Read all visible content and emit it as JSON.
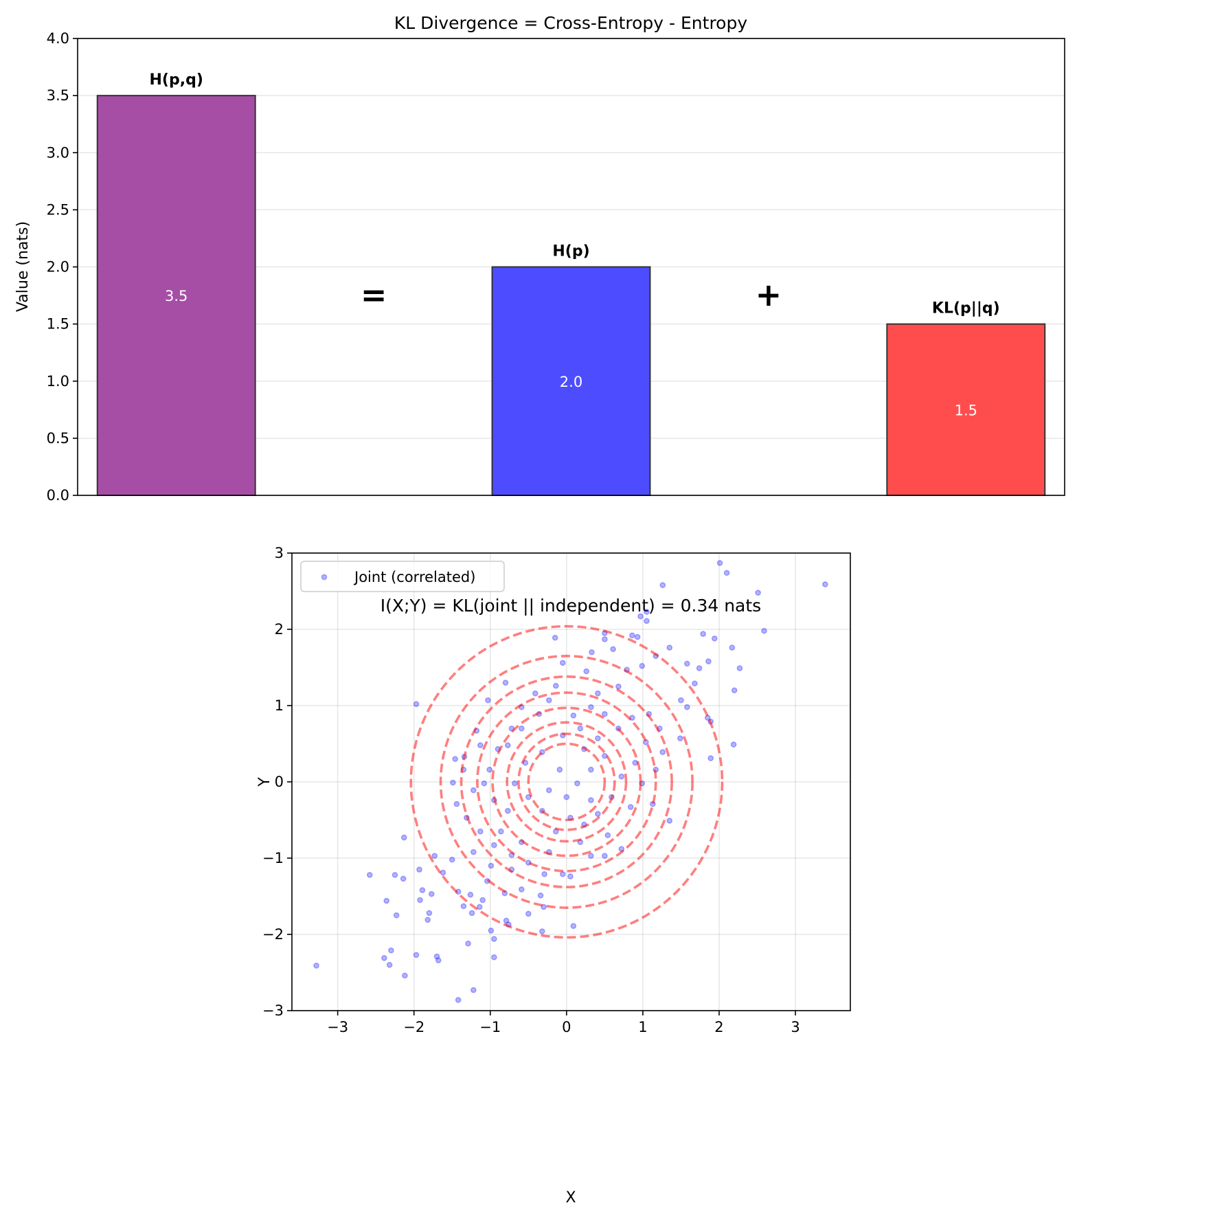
{
  "chart_data": [
    {
      "type": "bar",
      "title": "KL Divergence = Cross-Entropy - Entropy",
      "xlabel": "",
      "ylabel": "Value (nats)",
      "ylim": [
        0,
        4
      ],
      "xlim": [
        -0.5,
        4.5
      ],
      "yticks": [
        "0.0",
        "0.5",
        "1.0",
        "1.5",
        "2.0",
        "2.5",
        "3.0",
        "3.5",
        "4.0"
      ],
      "grid": "y",
      "bars": [
        {
          "pos": 0,
          "label": "H(p,q)",
          "value": 3.5,
          "value_text": "3.5",
          "color": "#A64DA6"
        },
        {
          "pos": 2,
          "label": "H(p)",
          "value": 2.0,
          "value_text": "2.0",
          "color": "#4D4DFF"
        },
        {
          "pos": 4,
          "label": "KL(p||q)",
          "value": 1.5,
          "value_text": "1.5",
          "color": "#FF4D4D"
        }
      ],
      "symbols": [
        {
          "pos": 1,
          "y": 1.75,
          "text": "="
        },
        {
          "pos": 3,
          "y": 1.75,
          "text": "+"
        }
      ]
    },
    {
      "type": "scatter",
      "title": "I(X;Y) = KL(joint || independent) = 0.34 nats",
      "xlabel": "X",
      "ylabel": "Y",
      "xlim": [
        -3.6,
        3.72
      ],
      "ylim": [
        -3,
        3
      ],
      "xticks": [
        "−3",
        "−2",
        "−1",
        "0",
        "1",
        "2",
        "3"
      ],
      "yticks": [
        "−3",
        "−2",
        "−1",
        "0",
        "1",
        "2",
        "3"
      ],
      "grid": "both",
      "legend": {
        "position": "top-left",
        "entries": [
          "Joint (correlated)"
        ]
      },
      "point_color": "#0000FF",
      "contour_color": "#FF0000",
      "contour_radii": [
        0.5,
        0.63,
        0.78,
        0.97,
        1.17,
        1.38,
        1.65,
        2.04
      ],
      "points": [
        [
          3.39,
          2.59
        ],
        [
          2.01,
          2.87
        ],
        [
          2.1,
          2.74
        ],
        [
          2.51,
          2.48
        ],
        [
          2.59,
          1.98
        ],
        [
          1.26,
          2.58
        ],
        [
          1.05,
          2.23
        ],
        [
          1.05,
          2.11
        ],
        [
          0.97,
          2.17
        ],
        [
          2.27,
          1.49
        ],
        [
          2.17,
          1.76
        ],
        [
          1.94,
          1.88
        ],
        [
          1.79,
          1.94
        ],
        [
          2.2,
          1.2
        ],
        [
          2.19,
          0.49
        ],
        [
          1.89,
          0.79
        ],
        [
          1.89,
          0.31
        ],
        [
          1.86,
          1.58
        ],
        [
          -3.28,
          -2.41
        ],
        [
          -2.58,
          -1.22
        ],
        [
          -2.39,
          -2.31
        ],
        [
          -2.32,
          -2.4
        ],
        [
          -2.3,
          -2.21
        ],
        [
          -2.36,
          -1.56
        ],
        [
          -2.23,
          -1.75
        ],
        [
          -2.12,
          -2.54
        ],
        [
          -1.97,
          -2.27
        ],
        [
          -2.13,
          -0.73
        ],
        [
          -1.97,
          1.02
        ],
        [
          -2.25,
          -1.22
        ],
        [
          -2.14,
          -1.27
        ],
        [
          -1.93,
          -1.15
        ],
        [
          -1.89,
          -1.42
        ],
        [
          -1.92,
          -1.55
        ],
        [
          -1.8,
          -1.72
        ],
        [
          -1.82,
          -1.81
        ],
        [
          -1.77,
          -1.47
        ],
        [
          -1.7,
          -2.29
        ],
        [
          -1.68,
          -2.34
        ],
        [
          -1.42,
          -2.86
        ],
        [
          -1.22,
          -2.73
        ],
        [
          -1.29,
          -2.12
        ],
        [
          -0.95,
          -2.3
        ],
        [
          -0.95,
          -2.06
        ],
        [
          -0.99,
          -1.95
        ],
        [
          -1.73,
          -0.97
        ],
        [
          -1.62,
          -1.19
        ],
        [
          -1.5,
          -1.02
        ],
        [
          -1.49,
          -0.01
        ],
        [
          -1.46,
          0.3
        ],
        [
          -1.34,
          0.33
        ],
        [
          -1.18,
          0.67
        ],
        [
          -1.03,
          1.07
        ],
        [
          -0.8,
          1.3
        ],
        [
          -0.15,
          1.89
        ],
        [
          -0.05,
          1.56
        ],
        [
          0.26,
          1.45
        ],
        [
          0.33,
          1.7
        ],
        [
          0.5,
          1.95
        ],
        [
          0.5,
          1.87
        ],
        [
          0.61,
          1.74
        ],
        [
          0.86,
          1.92
        ],
        [
          0.93,
          1.9
        ],
        [
          0.79,
          1.47
        ],
        [
          0.99,
          1.52
        ],
        [
          1.17,
          1.65
        ],
        [
          1.35,
          1.76
        ],
        [
          1.58,
          1.55
        ],
        [
          1.74,
          1.49
        ],
        [
          1.68,
          1.29
        ],
        [
          1.5,
          1.07
        ],
        [
          1.58,
          0.98
        ],
        [
          1.85,
          0.84
        ],
        [
          1.49,
          0.57
        ],
        [
          1.26,
          0.39
        ],
        [
          1.35,
          -0.51
        ],
        [
          1.13,
          -0.29
        ],
        [
          0.84,
          -0.33
        ],
        [
          0.72,
          -0.88
        ],
        [
          0.5,
          -0.97
        ],
        [
          0.32,
          -0.97
        ],
        [
          0.09,
          -1.89
        ],
        [
          -0.32,
          -1.96
        ],
        [
          -0.34,
          -1.49
        ],
        [
          -0.3,
          -1.64
        ],
        [
          -0.5,
          -1.73
        ],
        [
          -0.76,
          -1.87
        ],
        [
          -0.79,
          -1.82
        ],
        [
          -1.1,
          -1.55
        ],
        [
          -1.14,
          -1.64
        ],
        [
          -1.24,
          -1.72
        ],
        [
          -1.35,
          -1.63
        ],
        [
          -1.42,
          -1.44
        ],
        [
          -1.26,
          -1.48
        ],
        [
          -1.04,
          -1.3
        ],
        [
          -0.81,
          -1.46
        ],
        [
          -0.59,
          -1.41
        ],
        [
          0.05,
          -1.24
        ],
        [
          -0.05,
          -1.21
        ],
        [
          -0.29,
          -1.21
        ],
        [
          -0.5,
          -1.06
        ],
        [
          -0.72,
          -0.96
        ],
        [
          -0.95,
          -0.83
        ],
        [
          -1.13,
          -0.65
        ],
        [
          -1.31,
          -0.47
        ],
        [
          -1.44,
          -0.29
        ],
        [
          -1.22,
          -0.11
        ],
        [
          -1.01,
          0.16
        ],
        [
          -0.77,
          0.48
        ],
        [
          -0.59,
          0.7
        ],
        [
          -0.36,
          0.89
        ],
        [
          -0.23,
          1.07
        ],
        [
          -0.14,
          1.26
        ],
        [
          0.09,
          0.87
        ],
        [
          0.18,
          0.7
        ],
        [
          0.41,
          0.57
        ],
        [
          0.5,
          0.89
        ],
        [
          0.68,
          0.7
        ],
        [
          0.86,
          0.84
        ],
        [
          1.04,
          0.52
        ],
        [
          0.9,
          0.25
        ],
        [
          0.72,
          0.07
        ],
        [
          0.59,
          -0.2
        ],
        [
          0.41,
          -0.42
        ],
        [
          0.23,
          -0.56
        ],
        [
          0.05,
          -0.47
        ],
        [
          -0.14,
          -0.65
        ],
        [
          -0.32,
          -0.38
        ],
        [
          -0.5,
          -0.2
        ],
        [
          -0.68,
          -0.02
        ],
        [
          -0.54,
          0.25
        ],
        [
          -0.32,
          0.39
        ],
        [
          -0.09,
          0.16
        ],
        [
          0.14,
          -0.02
        ],
        [
          0.32,
          0.16
        ],
        [
          0.5,
          0.34
        ],
        [
          0.23,
          0.43
        ],
        [
          -0.05,
          0.61
        ],
        [
          -0.23,
          -0.11
        ],
        [
          0,
          -0.2
        ],
        [
          0.32,
          -0.24
        ],
        [
          -0.77,
          -0.38
        ],
        [
          -0.95,
          -0.24
        ],
        [
          -1.08,
          -0.02
        ],
        [
          -0.86,
          -0.65
        ],
        [
          -0.59,
          -0.79
        ],
        [
          -0.23,
          -0.92
        ],
        [
          0.18,
          -0.79
        ],
        [
          0.54,
          -0.7
        ],
        [
          0.99,
          -0.02
        ],
        [
          1.17,
          0.16
        ],
        [
          1.22,
          0.7
        ],
        [
          1.08,
          0.89
        ],
        [
          0.68,
          1.25
        ],
        [
          0.41,
          1.16
        ],
        [
          0.32,
          0.98
        ],
        [
          -0.41,
          1.16
        ],
        [
          -0.59,
          0.98
        ],
        [
          -0.72,
          0.7
        ],
        [
          -0.9,
          0.43
        ],
        [
          -1.13,
          0.48
        ],
        [
          -1.35,
          0.16
        ],
        [
          -1.22,
          -0.92
        ],
        [
          -0.99,
          -1.1
        ],
        [
          -0.72,
          -1.15
        ]
      ]
    }
  ]
}
